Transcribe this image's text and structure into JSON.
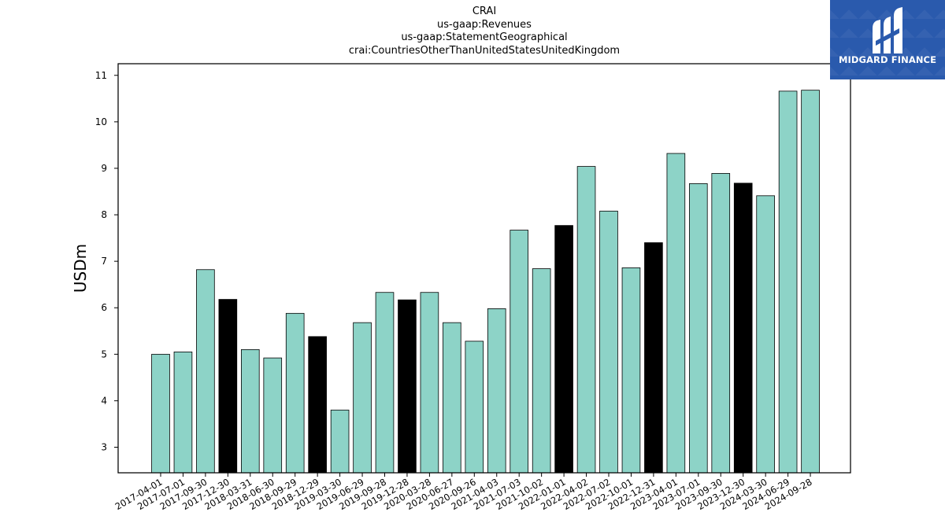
{
  "chart_data": {
    "type": "bar",
    "title_lines": [
      "CRAI",
      "us-gaap:Revenues",
      "us-gaap:StatementGeographical",
      "crai:CountriesOtherThanUnitedStatesUnitedKingdom"
    ],
    "xlabel": "",
    "ylabel": "USDm",
    "ylim": [
      2.45,
      11.25
    ],
    "yticks": [
      3,
      4,
      5,
      6,
      7,
      8,
      9,
      10,
      11
    ],
    "categories": [
      "2017-04-01",
      "2017-07-01",
      "2017-09-30",
      "2017-12-30",
      "2018-03-31",
      "2018-06-30",
      "2018-09-29",
      "2018-12-29",
      "2019-03-30",
      "2019-06-29",
      "2019-09-28",
      "2019-12-28",
      "2020-03-28",
      "2020-06-27",
      "2020-09-26",
      "2021-04-03",
      "2021-07-03",
      "2021-10-02",
      "2022-01-01",
      "2022-04-02",
      "2022-07-02",
      "2022-10-01",
      "2022-12-31",
      "2023-04-01",
      "2023-07-01",
      "2023-09-30",
      "2023-12-30",
      "2024-03-30",
      "2024-06-29",
      "2024-09-28"
    ],
    "values": [
      5.0,
      5.05,
      6.82,
      6.18,
      5.1,
      4.92,
      5.88,
      5.38,
      3.8,
      5.68,
      6.33,
      6.17,
      6.33,
      5.68,
      5.28,
      5.98,
      7.67,
      6.84,
      7.77,
      9.04,
      8.08,
      6.86,
      7.4,
      9.32,
      8.67,
      8.89,
      8.68,
      8.41,
      10.66,
      10.68
    ],
    "highlight": [
      false,
      false,
      false,
      true,
      false,
      false,
      false,
      true,
      false,
      false,
      false,
      true,
      false,
      false,
      false,
      false,
      false,
      false,
      true,
      false,
      false,
      false,
      true,
      false,
      false,
      false,
      true,
      false,
      false,
      false
    ],
    "colors": {
      "bar": "#8dd3c7",
      "highlight": "#000000",
      "edge": "#000000"
    },
    "grid": false,
    "legend": "none"
  },
  "logo": {
    "text": "MIDGARD FINANCE",
    "background": "#2a5aad"
  }
}
